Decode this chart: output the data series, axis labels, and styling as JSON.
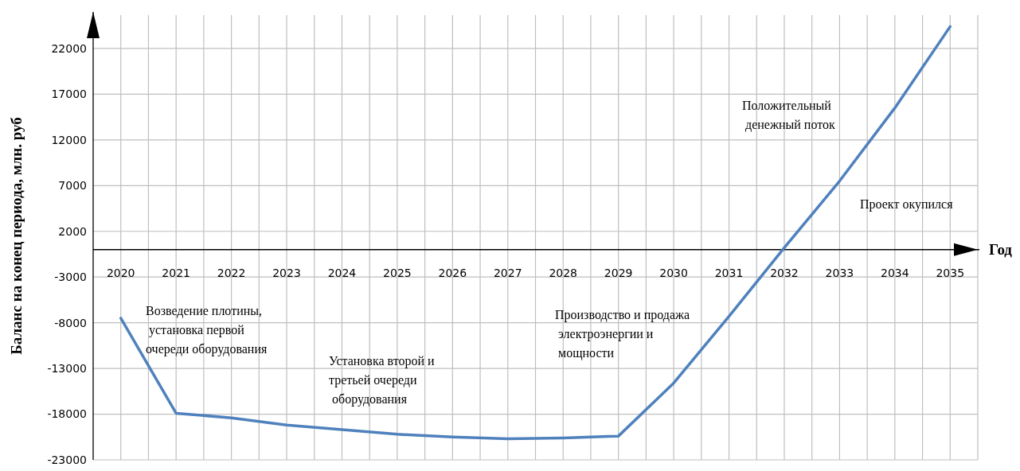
{
  "chart_data": {
    "type": "line",
    "xlabel": "Год",
    "ylabel": "Баланс на конец периода, млн. руб",
    "categories": [
      "2020",
      "2021",
      "2022",
      "2023",
      "2024",
      "2025",
      "2026",
      "2027",
      "2028",
      "2029",
      "2030",
      "2031",
      "2032",
      "2033",
      "2034",
      "2035"
    ],
    "series": [
      {
        "color": "#4f81bd",
        "values": [
          -7500,
          -17900,
          -18400,
          -19200,
          -19700,
          -20200,
          -20500,
          -20700,
          -20600,
          -20400,
          -14600,
          -7300,
          200,
          7500,
          15500,
          24400
        ]
      }
    ],
    "ylim": [
      -23000,
      26000
    ],
    "yticks": [
      -23000,
      -18000,
      -13000,
      -8000,
      -3000,
      2000,
      7000,
      12000,
      17000,
      22000
    ],
    "grid": true,
    "marker": "none",
    "line_style": "solid",
    "annotations": [
      "Возведение плотины,\n установка первой\nочереди оборудования",
      "Установка второй и\nтретьей очереди\n оборудования",
      "Производство и продажа\n электроэнергии и\n мощности",
      "Положительный\n денежный поток",
      "Проект окупился"
    ]
  }
}
